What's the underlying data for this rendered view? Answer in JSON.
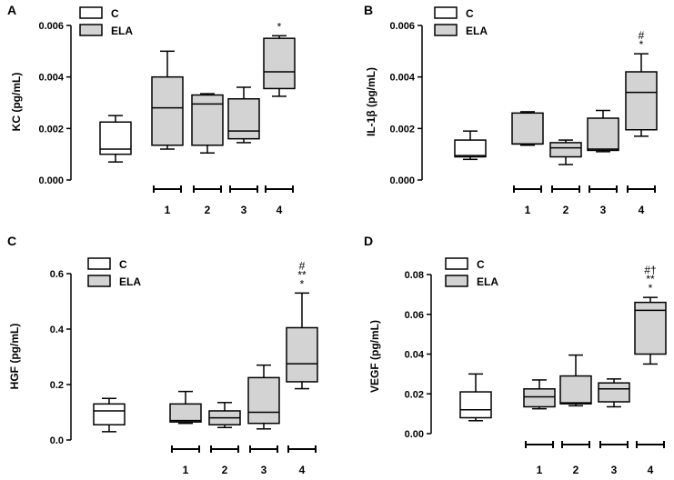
{
  "chart_data": [
    {
      "type": "boxplot",
      "panel_label": "A",
      "ylabel": "KC (pg/mL)",
      "ylim": [
        0,
        0.006
      ],
      "yticks": [
        "0.000",
        "0.002",
        "0.004",
        "0.006"
      ],
      "legend": [
        {
          "key": "C",
          "label": "C",
          "color": "#ffffff"
        },
        {
          "key": "ELA",
          "label": "ELA",
          "color": "#d3d3d3"
        }
      ],
      "group_labels": [
        "1",
        "2",
        "3",
        "4"
      ],
      "boxes": [
        {
          "series": "C",
          "group": null,
          "min": 0.0007,
          "q1": 0.001,
          "median": 0.0012,
          "q3": 0.00225,
          "max": 0.0025,
          "annotation": []
        },
        {
          "series": "ELA",
          "group": "1",
          "min": 0.0012,
          "q1": 0.00135,
          "median": 0.0028,
          "q3": 0.004,
          "max": 0.005,
          "annotation": []
        },
        {
          "series": "ELA",
          "group": "2",
          "min": 0.00105,
          "q1": 0.00135,
          "median": 0.00295,
          "q3": 0.0033,
          "max": 0.00335,
          "annotation": []
        },
        {
          "series": "ELA",
          "group": "3",
          "min": 0.00145,
          "q1": 0.0016,
          "median": 0.0019,
          "q3": 0.00315,
          "max": 0.0036,
          "annotation": []
        },
        {
          "series": "ELA",
          "group": "4",
          "min": 0.00325,
          "q1": 0.00355,
          "median": 0.0042,
          "q3": 0.0055,
          "max": 0.0056,
          "annotation": [
            "*"
          ]
        }
      ]
    },
    {
      "type": "boxplot",
      "panel_label": "B",
      "ylabel": "IL-1β (pg/mL)",
      "ylim": [
        0,
        0.006
      ],
      "yticks": [
        "0.000",
        "0.002",
        "0.004",
        "0.006"
      ],
      "legend": [
        {
          "key": "C",
          "label": "C",
          "color": "#ffffff"
        },
        {
          "key": "ELA",
          "label": "ELA",
          "color": "#d3d3d3"
        }
      ],
      "group_labels": [
        "1",
        "2",
        "3",
        "4"
      ],
      "boxes": [
        {
          "series": "C",
          "group": null,
          "min": 0.0008,
          "q1": 0.0009,
          "median": 0.00095,
          "q3": 0.00155,
          "max": 0.0019,
          "annotation": []
        },
        {
          "series": "ELA",
          "group": "1",
          "min": 0.00135,
          "q1": 0.0014,
          "median": 0.0014,
          "q3": 0.0026,
          "max": 0.00265,
          "annotation": []
        },
        {
          "series": "ELA",
          "group": "2",
          "min": 0.0006,
          "q1": 0.0009,
          "median": 0.00125,
          "q3": 0.00145,
          "max": 0.00155,
          "annotation": []
        },
        {
          "series": "ELA",
          "group": "3",
          "min": 0.0011,
          "q1": 0.00115,
          "median": 0.0012,
          "q3": 0.0024,
          "max": 0.0027,
          "annotation": []
        },
        {
          "series": "ELA",
          "group": "4",
          "min": 0.0017,
          "q1": 0.00195,
          "median": 0.0034,
          "q3": 0.0042,
          "max": 0.0049,
          "annotation": [
            "#",
            "*"
          ]
        }
      ]
    },
    {
      "type": "boxplot",
      "panel_label": "C",
      "ylabel": "HGF (pg/mL)",
      "ylim": [
        0,
        0.6
      ],
      "yticks": [
        "0.0",
        "0.2",
        "0.4",
        "0.6"
      ],
      "legend": [
        {
          "key": "C",
          "label": "C",
          "color": "#ffffff"
        },
        {
          "key": "ELA",
          "label": "ELA",
          "color": "#d3d3d3"
        }
      ],
      "group_labels": [
        "1",
        "2",
        "3",
        "4"
      ],
      "boxes": [
        {
          "series": "C",
          "group": null,
          "min": 0.03,
          "q1": 0.055,
          "median": 0.105,
          "q3": 0.13,
          "max": 0.15,
          "annotation": []
        },
        {
          "series": "ELA",
          "group": "1",
          "min": 0.06,
          "q1": 0.065,
          "median": 0.07,
          "q3": 0.13,
          "max": 0.175,
          "annotation": []
        },
        {
          "series": "ELA",
          "group": "2",
          "min": 0.045,
          "q1": 0.055,
          "median": 0.08,
          "q3": 0.105,
          "max": 0.135,
          "annotation": []
        },
        {
          "series": "ELA",
          "group": "3",
          "min": 0.04,
          "q1": 0.06,
          "median": 0.1,
          "q3": 0.225,
          "max": 0.27,
          "annotation": []
        },
        {
          "series": "ELA",
          "group": "4",
          "min": 0.185,
          "q1": 0.21,
          "median": 0.275,
          "q3": 0.405,
          "max": 0.53,
          "annotation": [
            "#",
            "**",
            "*"
          ]
        }
      ]
    },
    {
      "type": "boxplot",
      "panel_label": "D",
      "ylabel": "VEGF (pg/mL)",
      "ylim": [
        0,
        0.08
      ],
      "yticks": [
        "0.00",
        "0.02",
        "0.04",
        "0.06",
        "0.08"
      ],
      "legend": [
        {
          "key": "C",
          "label": "C",
          "color": "#ffffff"
        },
        {
          "key": "ELA",
          "label": "ELA",
          "color": "#d3d3d3"
        }
      ],
      "group_labels": [
        "1",
        "2",
        "3",
        "4"
      ],
      "boxes": [
        {
          "series": "C",
          "group": null,
          "min": 0.0065,
          "q1": 0.008,
          "median": 0.012,
          "q3": 0.021,
          "max": 0.03,
          "annotation": []
        },
        {
          "series": "ELA",
          "group": "1",
          "min": 0.0125,
          "q1": 0.0135,
          "median": 0.0185,
          "q3": 0.0225,
          "max": 0.027,
          "annotation": []
        },
        {
          "series": "ELA",
          "group": "2",
          "min": 0.014,
          "q1": 0.015,
          "median": 0.0155,
          "q3": 0.029,
          "max": 0.0395,
          "annotation": []
        },
        {
          "series": "ELA",
          "group": "3",
          "min": 0.0135,
          "q1": 0.016,
          "median": 0.0225,
          "q3": 0.0255,
          "max": 0.0275,
          "annotation": []
        },
        {
          "series": "ELA",
          "group": "4",
          "min": 0.035,
          "q1": 0.04,
          "median": 0.062,
          "q3": 0.066,
          "max": 0.0685,
          "annotation": [
            "#†",
            "**",
            "*"
          ]
        }
      ]
    }
  ]
}
